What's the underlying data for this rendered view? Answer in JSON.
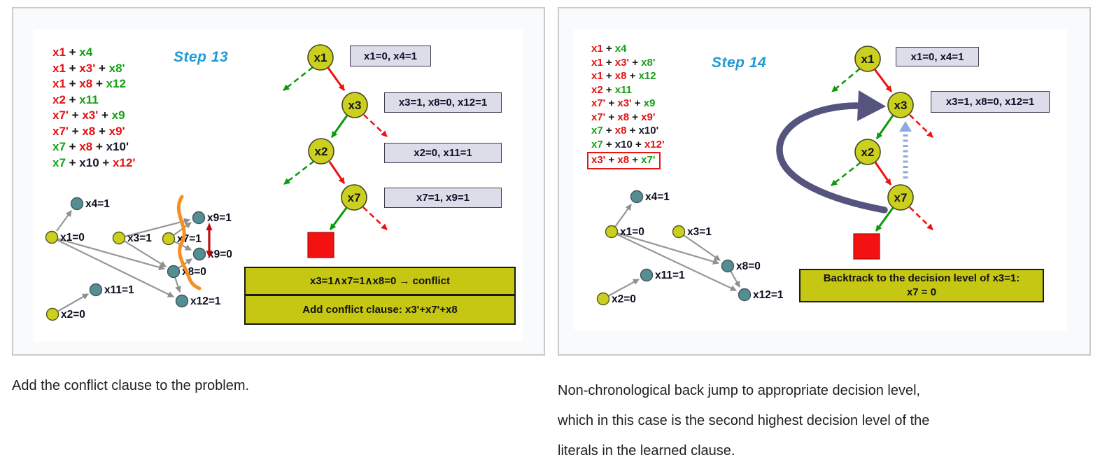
{
  "palette": {
    "red": "#e31212",
    "green": "#13a113",
    "dark": "#1a1a2e",
    "black": "#161616",
    "step_cyan": "#1f9ad6",
    "node_yellow": "#cbd01f",
    "node_teal": "#538e92",
    "box_yellow": "#c5c713",
    "label_lavender": "#dcdde9",
    "conflict_red": "#f31111",
    "arrow_gray": "#979797",
    "tree_red": "#ee1111",
    "tree_green": "#0a9a0a",
    "backjump_blue": "#54547e",
    "light_blue": "#8fa9e0",
    "cut_orange": "#f78f1e",
    "double_arrow_red": "#bf0d0d"
  },
  "left_panel": {
    "step_title": "Step 13",
    "clauses": [
      {
        "parts": [
          {
            "t": "x1",
            "c": "red"
          },
          {
            "t": " + ",
            "c": "black"
          },
          {
            "t": "x4",
            "c": "green"
          }
        ]
      },
      {
        "parts": [
          {
            "t": "x1",
            "c": "red"
          },
          {
            "t": " + ",
            "c": "black"
          },
          {
            "t": "x3'",
            "c": "red"
          },
          {
            "t": " + ",
            "c": "black"
          },
          {
            "t": "x8'",
            "c": "green"
          }
        ]
      },
      {
        "parts": [
          {
            "t": "x1",
            "c": "red"
          },
          {
            "t": " + ",
            "c": "black"
          },
          {
            "t": "x8",
            "c": "red"
          },
          {
            "t": " + ",
            "c": "black"
          },
          {
            "t": "x12",
            "c": "green"
          }
        ]
      },
      {
        "parts": [
          {
            "t": "x2",
            "c": "red"
          },
          {
            "t": " + ",
            "c": "black"
          },
          {
            "t": "x11",
            "c": "green"
          }
        ]
      },
      {
        "parts": [
          {
            "t": "x7'",
            "c": "red"
          },
          {
            "t": " + ",
            "c": "black"
          },
          {
            "t": "x3'",
            "c": "red"
          },
          {
            "t": " + ",
            "c": "black"
          },
          {
            "t": "x9",
            "c": "green"
          }
        ]
      },
      {
        "parts": [
          {
            "t": "x7'",
            "c": "red"
          },
          {
            "t": " + ",
            "c": "black"
          },
          {
            "t": "x8",
            "c": "red"
          },
          {
            "t": " + ",
            "c": "black"
          },
          {
            "t": "x9'",
            "c": "red"
          }
        ]
      },
      {
        "parts": [
          {
            "t": "x7",
            "c": "green"
          },
          {
            "t": " + ",
            "c": "black"
          },
          {
            "t": "x8",
            "c": "red"
          },
          {
            "t": " + ",
            "c": "black"
          },
          {
            "t": "x10'",
            "c": "dark"
          }
        ]
      },
      {
        "parts": [
          {
            "t": "x7",
            "c": "green"
          },
          {
            "t": " + ",
            "c": "black"
          },
          {
            "t": "x10",
            "c": "dark"
          },
          {
            "t": " + ",
            "c": "black"
          },
          {
            "t": "x12'",
            "c": "red"
          }
        ]
      }
    ],
    "tree_nodes": [
      "x1",
      "x3",
      "x2",
      "x7"
    ],
    "tree_labels": [
      "x1=0, x4=1",
      "x3=1, x8=0, x12=1",
      "x2=0, x11=1",
      "x7=1, x9=1"
    ],
    "graph_labels": {
      "x4": "x4=1",
      "x1": "x1=0",
      "x3": "x3=1",
      "x7": "x7=1",
      "x9a": "x9=1",
      "x9b": "x9=0",
      "x8": "x8=0",
      "x11": "x11=1",
      "x12": "x12=1",
      "x2": "x2=0"
    },
    "conflict_box": "x3=1∧x7=1∧x8=0 → conflict",
    "clause_box": "Add conflict clause: x3'+x7'+x8",
    "caption": "Add the conflict clause to the problem."
  },
  "right_panel": {
    "step_title": "Step 14",
    "clauses": [
      {
        "parts": [
          {
            "t": "x1",
            "c": "red"
          },
          {
            "t": " + ",
            "c": "black"
          },
          {
            "t": "x4",
            "c": "green"
          }
        ]
      },
      {
        "parts": [
          {
            "t": "x1",
            "c": "red"
          },
          {
            "t": " + ",
            "c": "black"
          },
          {
            "t": "x3'",
            "c": "red"
          },
          {
            "t": " + ",
            "c": "black"
          },
          {
            "t": "x8'",
            "c": "green"
          }
        ]
      },
      {
        "parts": [
          {
            "t": "x1",
            "c": "red"
          },
          {
            "t": " + ",
            "c": "black"
          },
          {
            "t": "x8",
            "c": "red"
          },
          {
            "t": " + ",
            "c": "black"
          },
          {
            "t": "x12",
            "c": "green"
          }
        ]
      },
      {
        "parts": [
          {
            "t": "x2",
            "c": "red"
          },
          {
            "t": " + ",
            "c": "black"
          },
          {
            "t": "x11",
            "c": "green"
          }
        ]
      },
      {
        "parts": [
          {
            "t": "x7'",
            "c": "red"
          },
          {
            "t": " + ",
            "c": "black"
          },
          {
            "t": "x3'",
            "c": "red"
          },
          {
            "t": " + ",
            "c": "black"
          },
          {
            "t": "x9",
            "c": "green"
          }
        ]
      },
      {
        "parts": [
          {
            "t": "x7'",
            "c": "red"
          },
          {
            "t": " + ",
            "c": "black"
          },
          {
            "t": "x8",
            "c": "red"
          },
          {
            "t": " + ",
            "c": "black"
          },
          {
            "t": "x9'",
            "c": "red"
          }
        ]
      },
      {
        "parts": [
          {
            "t": "x7",
            "c": "green"
          },
          {
            "t": " + ",
            "c": "black"
          },
          {
            "t": "x8",
            "c": "red"
          },
          {
            "t": " + ",
            "c": "black"
          },
          {
            "t": "x10'",
            "c": "dark"
          }
        ]
      },
      {
        "parts": [
          {
            "t": "x7",
            "c": "green"
          },
          {
            "t": " + ",
            "c": "black"
          },
          {
            "t": "x10",
            "c": "dark"
          },
          {
            "t": " + ",
            "c": "black"
          },
          {
            "t": "x12'",
            "c": "red"
          }
        ]
      },
      {
        "boxed": true,
        "parts": [
          {
            "t": "x3'",
            "c": "red"
          },
          {
            "t": " + ",
            "c": "black"
          },
          {
            "t": "x8",
            "c": "red"
          },
          {
            "t": " + ",
            "c": "black"
          },
          {
            "t": "x7'",
            "c": "green"
          }
        ]
      }
    ],
    "tree_nodes": [
      "x1",
      "x3",
      "x2",
      "x7"
    ],
    "tree_labels": [
      "x1=0, x4=1",
      "x3=1, x8=0, x12=1"
    ],
    "graph_labels": {
      "x4": "x4=1",
      "x1": "x1=0",
      "x3": "x3=1",
      "x8": "x8=0",
      "x11": "x11=1",
      "x2": "x2=0",
      "x12": "x12=1"
    },
    "backtrack_box_line1": "Backtrack to the decision level of x3=1:",
    "backtrack_box_line2": "x7 = 0",
    "caption_lines": [
      "Non-chronological back jump to appropriate decision level,",
      "which in this case is the second highest decision level of the",
      "literals in the learned clause."
    ]
  }
}
